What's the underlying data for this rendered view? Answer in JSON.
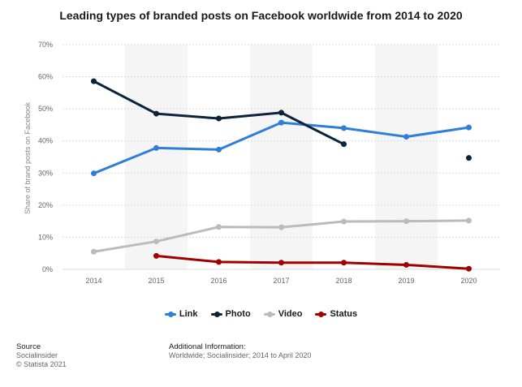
{
  "chart_data": {
    "type": "line",
    "title": "Leading types of branded posts on Facebook worldwide from 2014 to 2020",
    "xlabel": "",
    "ylabel": "Share of brand posts on Facebook",
    "ylim": [
      0,
      70
    ],
    "yticks": [
      "0%",
      "10%",
      "20%",
      "30%",
      "40%",
      "50%",
      "60%",
      "70%"
    ],
    "categories": [
      "2014",
      "2015",
      "2016",
      "2017",
      "2018",
      "2019",
      "2020"
    ],
    "series": [
      {
        "name": "Link",
        "color": "#2f7ed8",
        "values": [
          29.9,
          37.8,
          37.3,
          45.7,
          44.0,
          41.3,
          44.2
        ]
      },
      {
        "name": "Photo",
        "color": "#0d233a",
        "values": [
          58.6,
          48.5,
          47.0,
          48.8,
          39.0,
          null,
          34.7
        ]
      },
      {
        "name": "Video",
        "color": "#bbbbbb",
        "values": [
          5.5,
          8.7,
          13.2,
          13.1,
          14.9,
          15.0,
          15.2
        ]
      },
      {
        "name": "Status",
        "color": "#a00000",
        "values": [
          null,
          4.2,
          2.3,
          2.1,
          2.1,
          1.4,
          0.2
        ]
      }
    ],
    "legend_position": "bottom",
    "grid": true
  },
  "footer": {
    "source_heading": "Source",
    "source_name": "Socialinsider",
    "copyright": "© Statista 2021",
    "info_heading": "Additional Information:",
    "info_text": "Worldwide; Socialinsider; 2014 to April 2020"
  }
}
